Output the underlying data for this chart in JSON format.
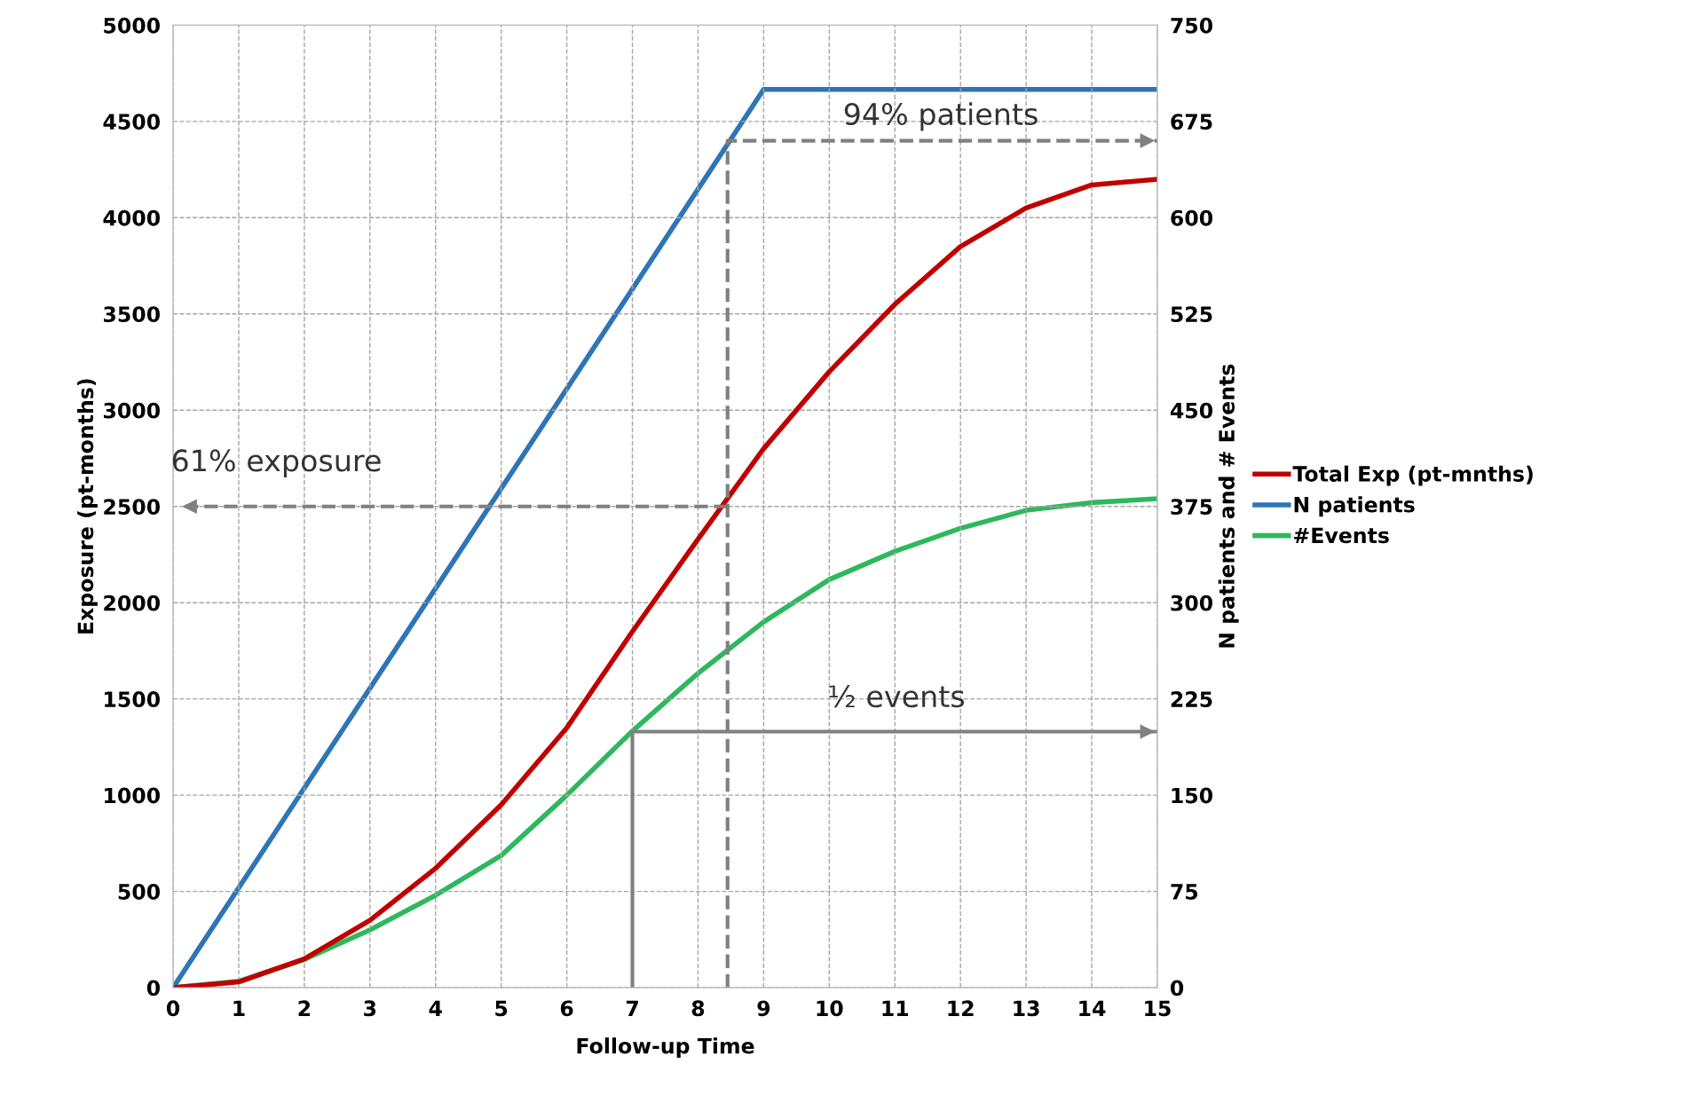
{
  "chart_data": {
    "type": "line",
    "xlabel": "Follow-up Time",
    "ylabel": "Exposure (pt-months)",
    "y2label": "N patients and # Events",
    "series": [
      {
        "name": "Total Exp (pt-mnths)",
        "color": "#c00000",
        "x": [
          0,
          1,
          2,
          3,
          4,
          5,
          6,
          7,
          8,
          9,
          10,
          11,
          12,
          13,
          14,
          15
        ],
        "values": [
          0,
          30,
          150,
          350,
          620,
          950,
          1350,
          1850,
          2330,
          2800,
          3200,
          3550,
          3850,
          4050,
          4170,
          4200
        ]
      },
      {
        "name": "N patients",
        "color": "#2e75b6",
        "axis": "y2",
        "x": [
          0,
          9,
          15
        ],
        "values": [
          0,
          700,
          700
        ]
      },
      {
        "name": "#Events",
        "color": "#2eb85c",
        "axis": "y2",
        "x": [
          0,
          1,
          2,
          3,
          4,
          5,
          6,
          7,
          8,
          9,
          10,
          11,
          12,
          13,
          14,
          15
        ],
        "values": [
          0,
          5,
          22,
          45,
          72,
          103,
          150,
          200,
          245,
          285,
          318,
          340,
          358,
          372,
          378,
          381
        ]
      },
      {
        "color": "#808080",
        "line_style": "dashed",
        "x": [
          8.45,
          8.45,
          15
        ],
        "values": [
          0,
          4400,
          4400
        ]
      },
      {
        "color": "#808080",
        "line_style": "dashed",
        "x": [
          8.45,
          0.1
        ],
        "values": [
          2500,
          2500
        ]
      },
      {
        "color": "#808080",
        "line_style": "solid",
        "x": [
          7,
          7,
          15
        ],
        "values": [
          0,
          1330,
          1330
        ]
      }
    ],
    "annotations": [
      "94% patients",
      "61% exposure",
      "½ events"
    ],
    "xlim": [
      0,
      15
    ],
    "xticks": [
      0,
      1,
      2,
      3,
      4,
      5,
      6,
      7,
      8,
      9,
      10,
      11,
      12,
      13,
      14,
      15
    ],
    "ylim": [
      0,
      5000
    ],
    "yticks": [
      0,
      500,
      1000,
      1500,
      2000,
      2500,
      3000,
      3500,
      4000,
      4500,
      5000
    ],
    "y2lim": [
      0,
      750
    ],
    "y2ticks": [
      0,
      75,
      150,
      225,
      300,
      375,
      450,
      525,
      600,
      675,
      750
    ],
    "grid": true,
    "legend": "right",
    "line_style": "solid",
    "marker": "none"
  }
}
